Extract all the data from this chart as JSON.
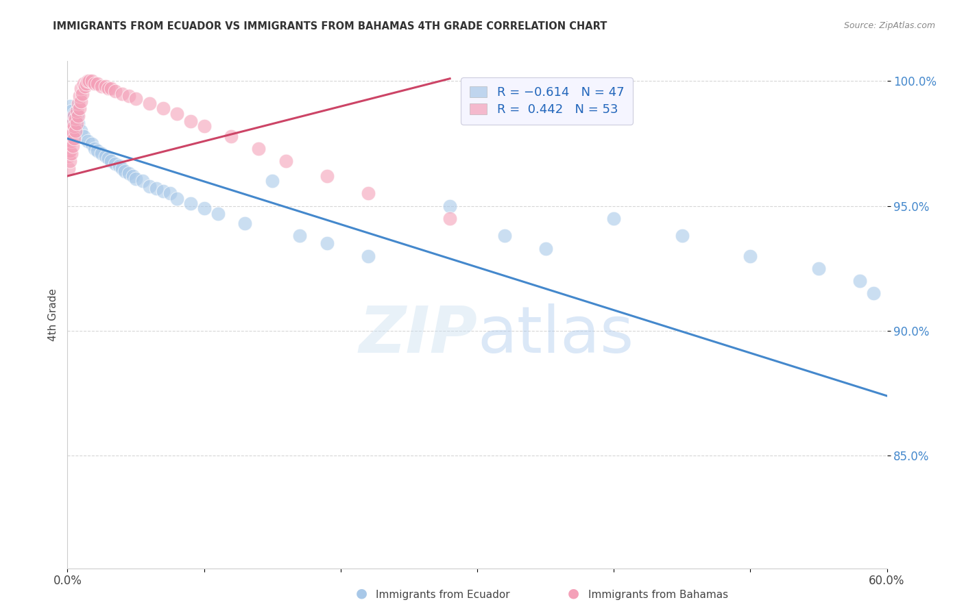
{
  "title": "IMMIGRANTS FROM ECUADOR VS IMMIGRANTS FROM BAHAMAS 4TH GRADE CORRELATION CHART",
  "source": "Source: ZipAtlas.com",
  "ylabel": "4th Grade",
  "x_min": 0.0,
  "x_max": 0.6,
  "y_min": 0.805,
  "y_max": 1.008,
  "ecuador_color": "#a8c8e8",
  "bahamas_color": "#f4a0b8",
  "ecuador_line_color": "#4488cc",
  "bahamas_line_color": "#cc4466",
  "watermark_zip": "ZIP",
  "watermark_atlas": "atlas",
  "grid_color": "#cccccc",
  "ecuador_scatter_x": [
    0.002,
    0.003,
    0.004,
    0.005,
    0.006,
    0.007,
    0.008,
    0.01,
    0.012,
    0.015,
    0.018,
    0.02,
    0.022,
    0.025,
    0.028,
    0.03,
    0.032,
    0.035,
    0.038,
    0.04,
    0.042,
    0.045,
    0.048,
    0.05,
    0.055,
    0.06,
    0.065,
    0.07,
    0.075,
    0.08,
    0.09,
    0.1,
    0.11,
    0.13,
    0.15,
    0.17,
    0.19,
    0.22,
    0.28,
    0.32,
    0.35,
    0.4,
    0.45,
    0.5,
    0.55,
    0.58,
    0.59
  ],
  "ecuador_scatter_y": [
    0.99,
    0.988,
    0.985,
    0.987,
    0.984,
    0.986,
    0.983,
    0.98,
    0.978,
    0.976,
    0.975,
    0.973,
    0.972,
    0.971,
    0.97,
    0.969,
    0.968,
    0.967,
    0.966,
    0.965,
    0.964,
    0.963,
    0.962,
    0.961,
    0.96,
    0.958,
    0.957,
    0.956,
    0.955,
    0.953,
    0.951,
    0.949,
    0.947,
    0.943,
    0.96,
    0.938,
    0.935,
    0.93,
    0.95,
    0.938,
    0.933,
    0.945,
    0.938,
    0.93,
    0.925,
    0.92,
    0.915
  ],
  "bahamas_scatter_x": [
    0.001,
    0.001,
    0.001,
    0.002,
    0.002,
    0.002,
    0.003,
    0.003,
    0.003,
    0.004,
    0.004,
    0.004,
    0.005,
    0.005,
    0.005,
    0.006,
    0.006,
    0.007,
    0.007,
    0.008,
    0.008,
    0.009,
    0.009,
    0.01,
    0.01,
    0.011,
    0.012,
    0.013,
    0.014,
    0.015,
    0.016,
    0.018,
    0.02,
    0.022,
    0.025,
    0.028,
    0.03,
    0.032,
    0.035,
    0.04,
    0.045,
    0.05,
    0.06,
    0.07,
    0.08,
    0.09,
    0.1,
    0.12,
    0.14,
    0.16,
    0.19,
    0.22,
    0.28
  ],
  "bahamas_scatter_y": [
    0.965,
    0.97,
    0.975,
    0.968,
    0.972,
    0.978,
    0.971,
    0.976,
    0.98,
    0.974,
    0.979,
    0.983,
    0.977,
    0.982,
    0.986,
    0.98,
    0.985,
    0.983,
    0.988,
    0.986,
    0.991,
    0.989,
    0.994,
    0.992,
    0.997,
    0.995,
    0.999,
    0.998,
    0.999,
    1.0,
    1.0,
    1.0,
    0.999,
    0.999,
    0.998,
    0.998,
    0.997,
    0.997,
    0.996,
    0.995,
    0.994,
    0.993,
    0.991,
    0.989,
    0.987,
    0.984,
    0.982,
    0.978,
    0.973,
    0.968,
    0.962,
    0.955,
    0.945
  ],
  "ecuador_trend_x": [
    0.0,
    0.6
  ],
  "ecuador_trend_y": [
    0.977,
    0.874
  ],
  "bahamas_trend_x": [
    0.0,
    0.28
  ],
  "bahamas_trend_y": [
    0.962,
    1.001
  ]
}
